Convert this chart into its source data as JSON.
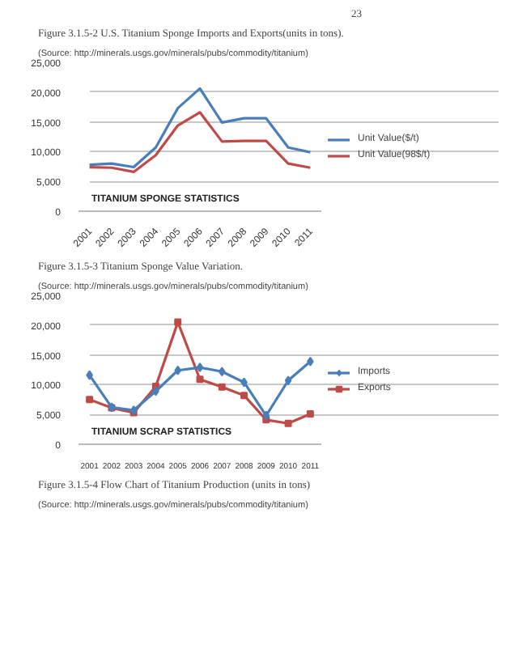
{
  "chart_data": [
    {
      "type": "line",
      "title": "Figure 3.1.5-2 U.S. Titanium Sponge Imports and Exports(units in tons).",
      "subtitle": "(Source: http://minerals.usgs.gov/minerals/pubs/commodity/titanium)",
      "categories": [
        "2001",
        "2002",
        "2003",
        "2004",
        "2005",
        "2006",
        "2007",
        "2008",
        "2009",
        "2010",
        "2011"
      ],
      "series": [
        {
          "name": "Unit Value($/t)",
          "color": "#4a7ebb",
          "values": [
            7800,
            8000,
            7400,
            10700,
            17300,
            20600,
            14900,
            15600,
            15600,
            10700,
            9900
          ]
        },
        {
          "name": "Unit Value(98$/t)",
          "color": "#be4b48",
          "values": [
            7400,
            7300,
            6600,
            9400,
            14400,
            16600,
            11700,
            11800,
            11800,
            8000,
            7300
          ]
        }
      ],
      "ylim": [
        0,
        25000
      ],
      "yticks": [
        0,
        {
          "value": 5000,
          "label": "5,000"
        },
        {
          "value": 10000,
          "label": "10,000"
        },
        {
          "value": 15000,
          "label": "15,000"
        },
        {
          "value": 20000,
          "label": "20,000"
        },
        {
          "value": 25000,
          "label": "25,000"
        }
      ],
      "grid": "y",
      "legend": "right",
      "line_style": "solid",
      "annotations": [
        "TITANIUM SPONGE STATISTICS",
        "23"
      ]
    },
    {
      "type": "line",
      "title": "Figure 3.1.5-3 Titanium Sponge Value Variation.",
      "subtitle": "(Source: http://minerals.usgs.gov/minerals/pubs/commodity/titanium)",
      "categories": [
        "2001",
        "2002",
        "2003",
        "2004",
        "2005",
        "2006",
        "2007",
        "2008",
        "2009",
        "2010",
        "2011"
      ],
      "series": [
        {
          "name": "Imports",
          "color": "#4a7ebb",
          "marker": "diamond",
          "values": [
            11600,
            6200,
            5700,
            8900,
            12400,
            12900,
            12200,
            10400,
            4800,
            10700,
            13900
          ]
        },
        {
          "name": "Exports",
          "color": "#be4b48",
          "marker": "square",
          "values": [
            7500,
            6100,
            5300,
            9700,
            20500,
            10900,
            9600,
            8200,
            4100,
            3500,
            5100
          ]
        }
      ],
      "ylim": [
        0,
        25000
      ],
      "yticks": [
        0,
        {
          "value": 5000,
          "label": "5,000"
        },
        {
          "value": 10000,
          "label": "10,000"
        },
        {
          "value": 15000,
          "label": "15,000"
        },
        {
          "value": 20000,
          "label": "20,000"
        },
        {
          "value": 25000,
          "label": "25,000"
        }
      ],
      "grid": "y",
      "legend": "right",
      "line_style": "solid",
      "annotations": [
        "TITANIUM SCRAP STATISTICS",
        "Figure 3.1.5-4 Flow Chart of Titanium Production (units in tons)",
        "(Source: http://minerals.usgs.gov/minerals/pubs/commodity/titanium)"
      ]
    }
  ]
}
